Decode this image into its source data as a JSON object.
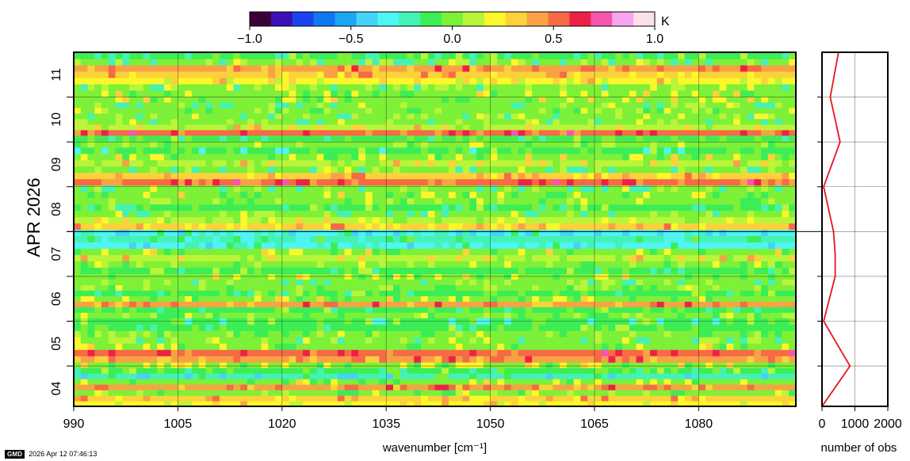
{
  "chart_data": [
    {
      "type": "heatmap",
      "title": "",
      "xlabel": "wavenumber [cm⁻¹]",
      "ylabel": "APR 2026",
      "xlim": [
        990,
        1094
      ],
      "ylim": [
        3.6,
        11.5
      ],
      "x_ticks": [
        990,
        1005,
        1020,
        1035,
        1050,
        1065,
        1080
      ],
      "x_tick_labels": [
        "990",
        "1005",
        "1020",
        "1035",
        "1050",
        "1065",
        "1080"
      ],
      "y_ticks": [
        4,
        5,
        6,
        7,
        8,
        9,
        10,
        11
      ],
      "y_tick_labels": [
        "04",
        "05",
        "06",
        "07",
        "08",
        "09",
        "10",
        "11"
      ],
      "grid": true,
      "colorbar": {
        "unit": "K",
        "range": [
          -1.0,
          1.0
        ],
        "tick_values": [
          -1.0,
          -0.5,
          0.0,
          0.5,
          1.0
        ],
        "tick_labels": [
          "−1.0",
          "−0.5",
          "0.0",
          "0.5",
          "1.0"
        ],
        "colors": [
          "#3a0038",
          "#3b10b5",
          "#1b44ee",
          "#1277f2",
          "#1ba6f2",
          "#45d2f7",
          "#4ef5f2",
          "#45f2b5",
          "#3ded55",
          "#7df038",
          "#b9f538",
          "#fbf72a",
          "#fbd23a",
          "#f8a245",
          "#f76a45",
          "#ef2048",
          "#f755b0",
          "#f7a5f0",
          "#fde0e8"
        ]
      },
      "rows_by_day": [
        {
          "day": "04",
          "rows": [
            0.2,
            0.35,
            0.0,
            0.4,
            0.05,
            -0.25,
            -0.1,
            0.05
          ]
        },
        {
          "day": "05",
          "rows": [
            0.4,
            0.5,
            0.05,
            -0.05,
            0.0,
            -0.1,
            -0.15
          ]
        },
        {
          "day": "06",
          "rows": [
            0.0,
            -0.1,
            0.4,
            0.05,
            -0.1,
            0.0,
            -0.05,
            0.05
          ]
        },
        {
          "day": "07",
          "rows": [
            -0.1,
            0.0,
            0.15,
            0.05,
            -0.35,
            -0.2,
            -0.3
          ]
        },
        {
          "day": "08",
          "rows": [
            0.3,
            0.1,
            -0.05,
            -0.1,
            0.0,
            0.05,
            -0.05
          ]
        },
        {
          "day": "09",
          "rows": [
            0.55,
            0.35,
            -0.05,
            0.15,
            0.05,
            -0.15,
            0.0
          ]
        },
        {
          "day": "10",
          "rows": [
            -0.1,
            0.5,
            0.15,
            -0.05,
            -0.05,
            0.0,
            -0.05,
            0.05
          ]
        },
        {
          "day": "11",
          "rows": [
            0.05,
            -0.05,
            0.2,
            0.35,
            0.45,
            -0.05,
            -0.1
          ]
        }
      ]
    },
    {
      "type": "line",
      "title": "",
      "xlabel": "number of obs",
      "ylabel": "",
      "xlim": [
        0,
        2000
      ],
      "x_ticks": [
        0,
        1000,
        2000
      ],
      "x_tick_labels": [
        "0",
        "1000",
        "2000"
      ],
      "grid": true,
      "series": [
        {
          "color": "#e8141e",
          "points": [
            [
              0,
              3.6
            ],
            [
              850,
              4.5
            ],
            [
              50,
              5.5
            ],
            [
              400,
              6.5
            ],
            [
              400,
              7.0
            ],
            [
              350,
              7.5
            ],
            [
              50,
              8.5
            ],
            [
              550,
              9.5
            ],
            [
              250,
              10.5
            ],
            [
              500,
              11.5
            ]
          ]
        }
      ]
    }
  ],
  "footer": {
    "logo": "GMD",
    "timestamp": "2026 Apr 12 07:46:13"
  }
}
